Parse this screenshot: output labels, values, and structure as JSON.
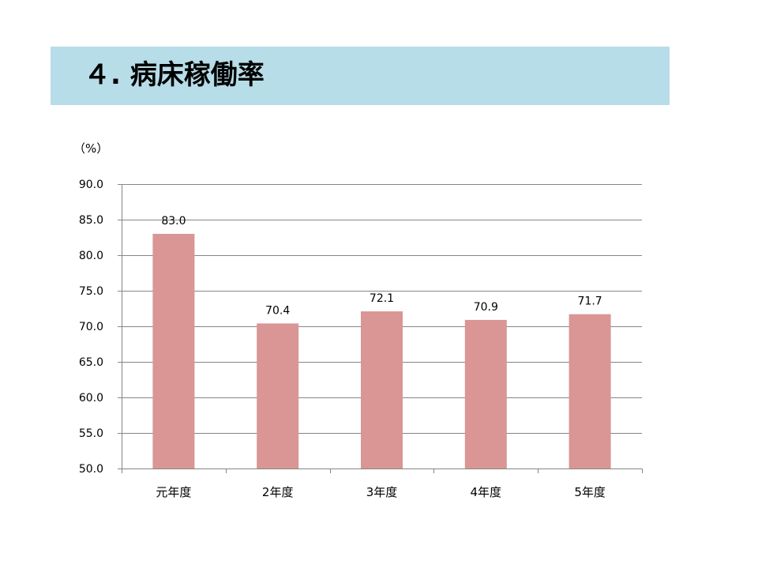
{
  "slide": {
    "title": "４. 病床稼働率"
  },
  "chart_data": {
    "type": "bar",
    "unit_label": "（%）",
    "categories": [
      "元年度",
      "2年度",
      "3年度",
      "4年度",
      "5年度"
    ],
    "values": [
      83.0,
      70.4,
      72.1,
      70.9,
      71.7
    ],
    "value_labels": [
      "83.0",
      "70.4",
      "72.1",
      "70.9",
      "71.7"
    ],
    "ylim": [
      50.0,
      90.0
    ],
    "yticks": [
      50.0,
      55.0,
      60.0,
      65.0,
      70.0,
      75.0,
      80.0,
      85.0,
      90.0
    ],
    "ytick_labels": [
      "50.0",
      "55.0",
      "60.0",
      "65.0",
      "70.0",
      "75.0",
      "80.0",
      "85.0",
      "90.0"
    ],
    "grid": true,
    "bar_color": "#d99694",
    "title": "",
    "xlabel": "",
    "ylabel": ""
  }
}
